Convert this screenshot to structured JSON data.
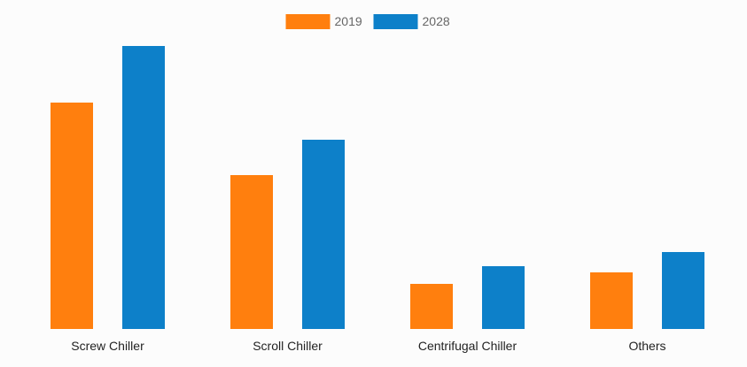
{
  "chart_data": {
    "type": "bar",
    "title": "",
    "xlabel": "",
    "ylabel": "",
    "categories": [
      "Screw Chiller",
      "Scroll Chiller",
      "Centrifugal Chiller",
      "Others"
    ],
    "series": [
      {
        "name": "2019",
        "color": "#ff7f0e",
        "values": [
          25.6,
          17.4,
          5.1,
          6.4
        ]
      },
      {
        "name": "2028",
        "color": "#0d80c9",
        "values": [
          32.0,
          21.4,
          7.1,
          8.7
        ]
      }
    ],
    "ylim": [
      0,
      32
    ],
    "grid": false,
    "legend_position": "top-center"
  }
}
